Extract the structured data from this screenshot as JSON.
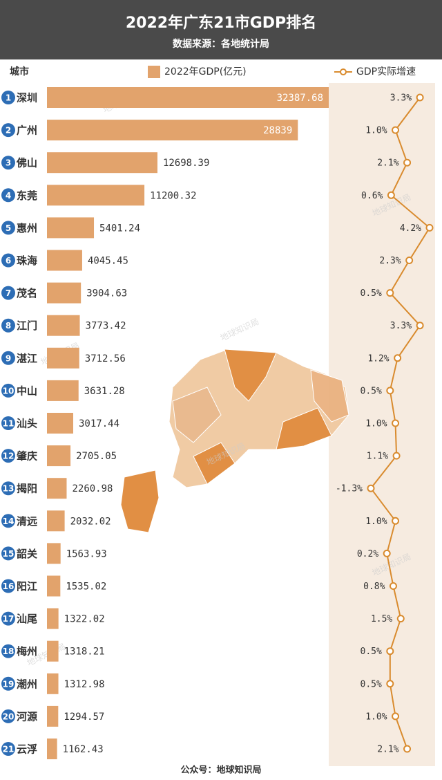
{
  "chart_data": {
    "type": "bar",
    "orientation": "horizontal",
    "title": "2022年广东21市GDP排名",
    "subtitle": "数据来源：各地统计局",
    "category_label": "城市",
    "ranks": [
      1,
      2,
      3,
      4,
      5,
      6,
      7,
      8,
      9,
      10,
      11,
      12,
      13,
      14,
      15,
      16,
      17,
      18,
      19,
      20,
      21
    ],
    "categories": [
      "深圳",
      "广州",
      "佛山",
      "东莞",
      "惠州",
      "珠海",
      "茂名",
      "江门",
      "湛江",
      "中山",
      "汕头",
      "肇庆",
      "揭阳",
      "清远",
      "韶关",
      "阳江",
      "汕尾",
      "梅州",
      "潮州",
      "河源",
      "云浮"
    ],
    "series": [
      {
        "name": "2022年GDP(亿元)",
        "color": "#e2a36c",
        "values": [
          32387.68,
          28839,
          12698.39,
          11200.32,
          5401.24,
          4045.45,
          3904.63,
          3773.42,
          3712.56,
          3631.28,
          3017.44,
          2705.05,
          2260.98,
          2032.02,
          1563.93,
          1535.02,
          1322.02,
          1318.21,
          1312.98,
          1294.57,
          1162.43
        ]
      },
      {
        "name": "GDP实际增速",
        "type": "line",
        "color": "#d98b2e",
        "values": [
          3.3,
          1.0,
          2.1,
          0.6,
          4.2,
          2.3,
          0.5,
          3.3,
          1.2,
          0.5,
          1.0,
          1.1,
          -1.3,
          1.0,
          0.2,
          0.8,
          1.5,
          0.5,
          0.5,
          1.0,
          2.1
        ],
        "value_labels": [
          "3.3%",
          "1.0%",
          "2.1%",
          "0.6%",
          "4.2%",
          "2.3%",
          "0.5%",
          "3.3%",
          "1.2%",
          "0.5%",
          "1.0%",
          "1.1%",
          "-1.3%",
          "1.0%",
          "0.2%",
          "0.8%",
          "1.5%",
          "0.5%",
          "0.5%",
          "1.0%",
          "2.1%"
        ]
      }
    ],
    "watermark": "地球知识局",
    "footer": "公众号：地球知识局"
  }
}
